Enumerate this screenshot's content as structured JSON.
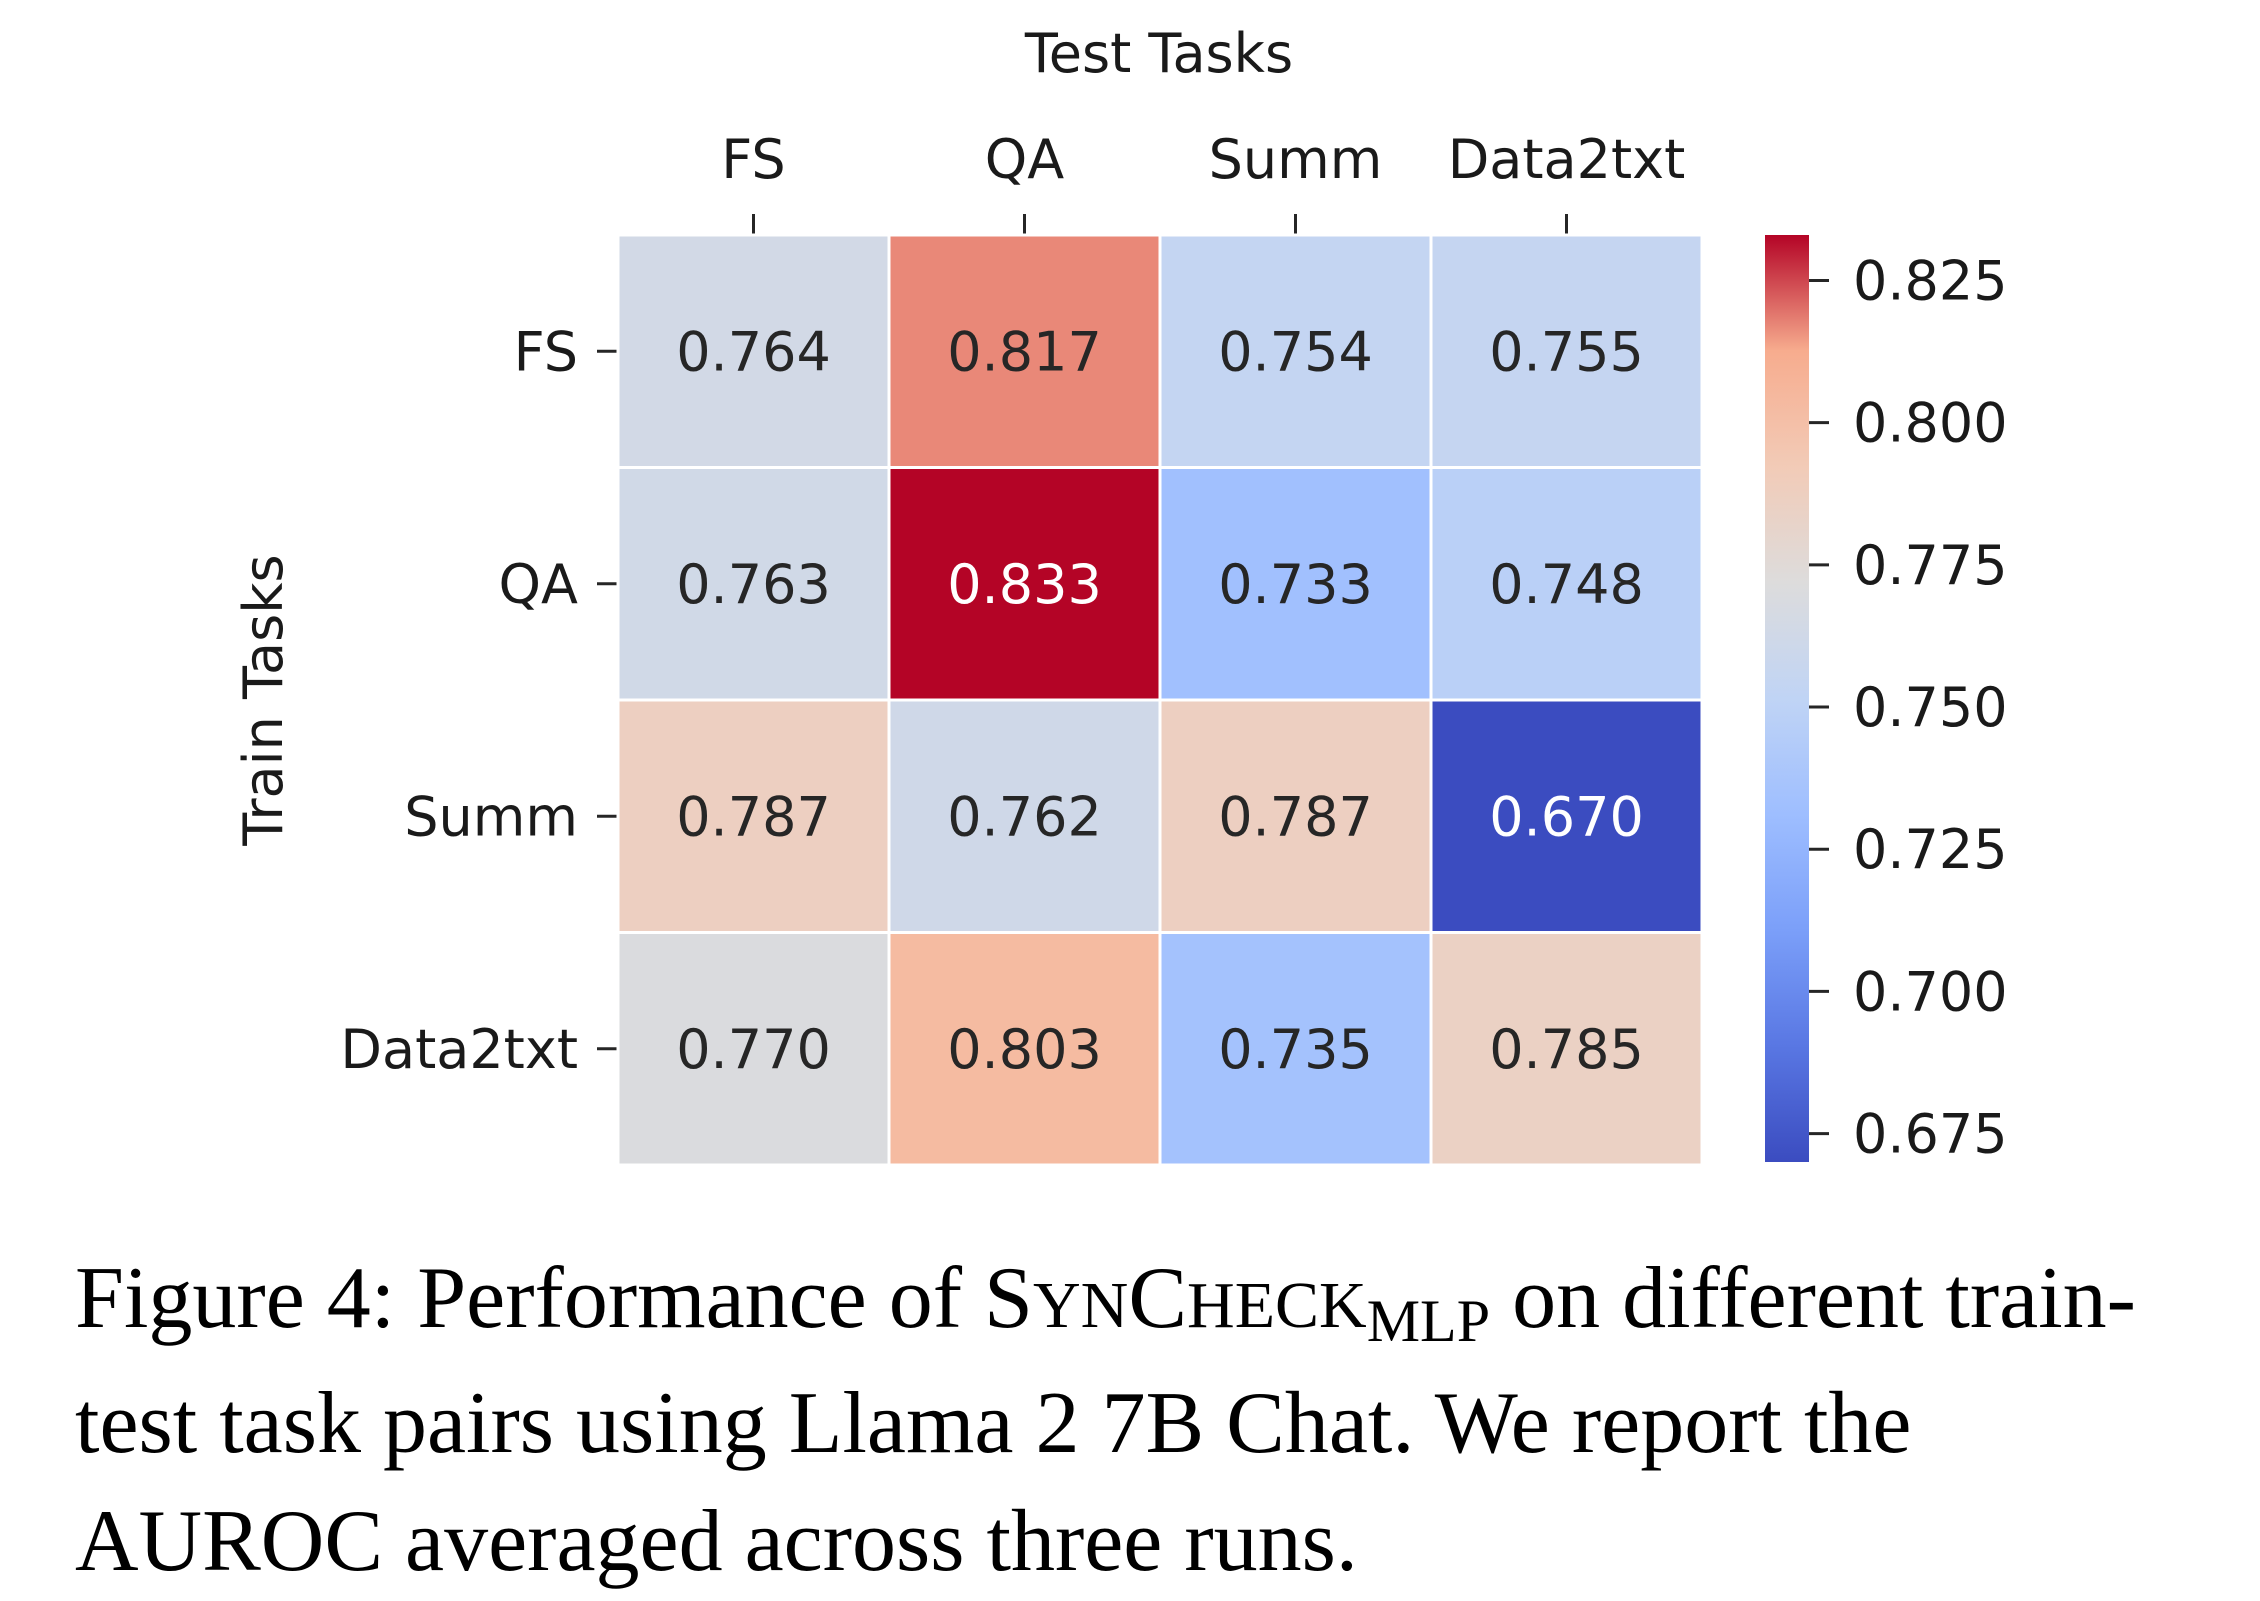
{
  "chart_data": {
    "type": "heatmap",
    "xlabel": "Test Tasks",
    "ylabel": "Train Tasks",
    "x_categories": [
      "FS",
      "QA",
      "Summ",
      "Data2txt"
    ],
    "y_categories": [
      "FS",
      "QA",
      "Summ",
      "Data2txt"
    ],
    "values": [
      [
        0.764,
        0.817,
        0.754,
        0.755
      ],
      [
        0.763,
        0.833,
        0.733,
        0.748
      ],
      [
        0.787,
        0.762,
        0.787,
        0.67
      ],
      [
        0.77,
        0.803,
        0.735,
        0.785
      ]
    ],
    "cell_labels": [
      [
        "0.764",
        "0.817",
        "0.754",
        "0.755"
      ],
      [
        "0.763",
        "0.833",
        "0.733",
        "0.748"
      ],
      [
        "0.787",
        "0.762",
        "0.787",
        "0.670"
      ],
      [
        "0.770",
        "0.803",
        "0.735",
        "0.785"
      ]
    ],
    "colormap": "coolwarm",
    "color_range": [
      0.67,
      0.833
    ],
    "colorbar_ticks": [
      0.675,
      0.7,
      0.725,
      0.75,
      0.775,
      0.8,
      0.825
    ],
    "colorbar_tick_labels": [
      "0.675",
      "0.700",
      "0.725",
      "0.750",
      "0.775",
      "0.800",
      "0.825"
    ],
    "colorbar_position": "right",
    "x_axis_position": "top"
  },
  "caption": {
    "prefix": "Figure 4: Performance of ",
    "method_S": "S",
    "method_yn": "YN",
    "method_C": "C",
    "method_heck": "HECK",
    "method_sub": "MLP",
    "suffix": " on different train-test task pairs using Llama 2 7B Chat. We report the AUROC averaged across three runs."
  }
}
